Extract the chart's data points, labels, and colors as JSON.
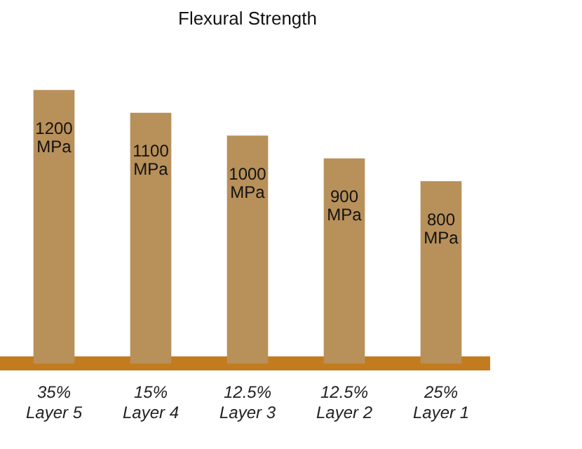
{
  "chart_data": {
    "type": "bar",
    "title": "Flexural Strength",
    "categories": [
      "35%\nLayer 5",
      "15%\nLayer 4",
      "12.5%\nLayer 3",
      "12.5%\nLayer 2",
      "25%\nLayer 1"
    ],
    "values": [
      1200,
      1100,
      1000,
      900,
      800
    ],
    "value_labels": [
      "1200\nMPa",
      "1100\nMPa",
      "1000\nMPa",
      "900\nMPa",
      "800\nMPa"
    ],
    "color": "#b8905a",
    "tick_labels": "x",
    "grid": false,
    "legend": false
  }
}
